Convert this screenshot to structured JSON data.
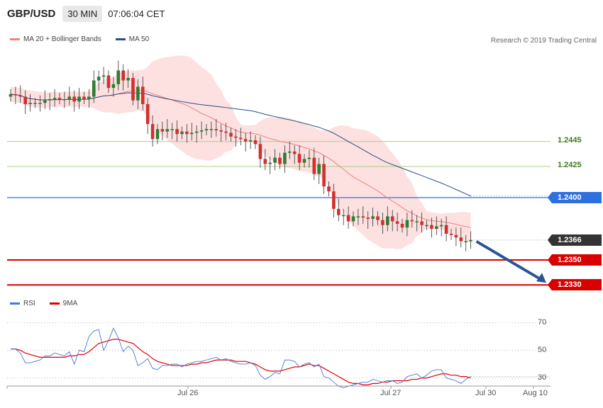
{
  "header": {
    "symbol": "GBP/USD",
    "timeframe": "30 MIN",
    "time": "07:06:04 CET"
  },
  "legend": {
    "ma20_label": "MA 20 + Bollinger Bands",
    "ma50_label": "MA 50",
    "rsi_label": "RSI",
    "rsi_ma_label": "9MA"
  },
  "copyright": "Research © 2019 Trading Central",
  "colors": {
    "bull": "#2e7d32",
    "bear": "#d32f2f",
    "ma20": "#f08080",
    "band_fill": "#fde0e0",
    "ma50": "#2b4f81",
    "green_level": "#a8d088",
    "blue_level": "#2f6fe0",
    "red_level": "#d90000",
    "current_price": "#333333",
    "rsi": "#4a74d8",
    "rsi_ma": "#e00000",
    "arrow": "#2a5596"
  },
  "chart_data": {
    "type": "candlestick",
    "title": "GBP/USD 30 MIN",
    "current_price": 1.2366,
    "levels": [
      {
        "value": 1.2445,
        "label": "1.2445",
        "kind": "resistance-green"
      },
      {
        "value": 1.2425,
        "label": "1.2425",
        "kind": "resistance-green"
      },
      {
        "value": 1.24,
        "label": "1.2400",
        "kind": "pivot-blue"
      },
      {
        "value": 1.2366,
        "label": "1.2366",
        "kind": "current"
      },
      {
        "value": 1.235,
        "label": "1.2350",
        "kind": "support-red"
      },
      {
        "value": 1.233,
        "label": "1.2330",
        "kind": "support-red"
      }
    ],
    "x_ticks": [
      "Jul 26",
      "Jul 27",
      "Jul 30",
      "Aug 10"
    ],
    "closes": [
      1.2483,
      1.2482,
      1.2481,
      1.2475,
      1.2476,
      1.2476,
      1.2476,
      1.2478,
      1.2479,
      1.248,
      1.2479,
      1.2479,
      1.2481,
      1.2477,
      1.2481,
      1.2479,
      1.2481,
      1.2494,
      1.2497,
      1.2498,
      1.2488,
      1.2491,
      1.2502,
      1.2494,
      1.2496,
      1.2478,
      1.2489,
      1.2475,
      1.2459,
      1.2447,
      1.2455,
      1.2453,
      1.2455,
      1.2455,
      1.2451,
      1.2453,
      1.2451,
      1.2452,
      1.2453,
      1.2454,
      1.2455,
      1.2455,
      1.2454,
      1.2453,
      1.2452,
      1.2449,
      1.2448,
      1.2447,
      1.2445,
      1.2446,
      1.2443,
      1.2431,
      1.2427,
      1.2428,
      1.2432,
      1.2427,
      1.2436,
      1.2437,
      1.2435,
      1.2428,
      1.2431,
      1.2432,
      1.2419,
      1.2427,
      1.2409,
      1.2405,
      1.2391,
      1.2386,
      1.2386,
      1.2381,
      1.2385,
      1.2385,
      1.2384,
      1.2383,
      1.2385,
      1.2382,
      1.2378,
      1.2385,
      1.2381,
      1.2379,
      1.2376,
      1.2382,
      1.2381,
      1.2381,
      1.2378,
      1.2378,
      1.2375,
      1.2377,
      1.2378,
      1.2371,
      1.237,
      1.2368,
      1.2365,
      1.2365,
      1.2366
    ],
    "opens": [
      1.2481,
      1.2483,
      1.2482,
      1.2481,
      1.2475,
      1.2476,
      1.2476,
      1.2476,
      1.2478,
      1.2479,
      1.248,
      1.2479,
      1.2479,
      1.2481,
      1.2477,
      1.2481,
      1.2479,
      1.2481,
      1.2494,
      1.2497,
      1.2498,
      1.2488,
      1.2491,
      1.2502,
      1.2494,
      1.2496,
      1.2478,
      1.2489,
      1.2475,
      1.2459,
      1.2447,
      1.2455,
      1.2453,
      1.2455,
      1.2455,
      1.2451,
      1.2453,
      1.2451,
      1.2452,
      1.2453,
      1.2454,
      1.2455,
      1.2455,
      1.2454,
      1.2453,
      1.2452,
      1.2449,
      1.2448,
      1.2447,
      1.2445,
      1.2446,
      1.2443,
      1.2431,
      1.2427,
      1.2428,
      1.2432,
      1.2427,
      1.2436,
      1.2437,
      1.2435,
      1.2428,
      1.2431,
      1.2432,
      1.2419,
      1.2427,
      1.2409,
      1.2405,
      1.2391,
      1.2386,
      1.2386,
      1.2381,
      1.2385,
      1.2385,
      1.2384,
      1.2383,
      1.2385,
      1.2382,
      1.2378,
      1.2385,
      1.2381,
      1.2379,
      1.2376,
      1.2382,
      1.2381,
      1.2381,
      1.2378,
      1.2378,
      1.2375,
      1.2377,
      1.2378,
      1.2371,
      1.237,
      1.2368,
      1.2365,
      1.2365
    ],
    "rsi": {
      "ticks": [
        30,
        50,
        70
      ],
      "ylim": [
        18,
        78
      ],
      "rsi_values": [
        51,
        51,
        48,
        41,
        41,
        42,
        43,
        46,
        46,
        48,
        47,
        46,
        49,
        40,
        50,
        49,
        60,
        64,
        65,
        50,
        57,
        66,
        59,
        49,
        53,
        50,
        39,
        41,
        44,
        37,
        36,
        39,
        39,
        40,
        40,
        38,
        40,
        41,
        42,
        42,
        43,
        44,
        45,
        43,
        44,
        42,
        41,
        40,
        40,
        41,
        39,
        32,
        29,
        31,
        34,
        33,
        43,
        43,
        42,
        38,
        40,
        41,
        38,
        40,
        31,
        30,
        27,
        24,
        23,
        24,
        25,
        26,
        27,
        27,
        29,
        28,
        27,
        28,
        28,
        26,
        27,
        31,
        32,
        33,
        30,
        32,
        35,
        36,
        36,
        30,
        29,
        28,
        26,
        29,
        31
      ],
      "rsi_ma_values": [
        51,
        51,
        50,
        48,
        47,
        46,
        45,
        45,
        45,
        45,
        45,
        45,
        46,
        46,
        47,
        47,
        49,
        52,
        55,
        56,
        57,
        58,
        58,
        57,
        56,
        55,
        52,
        49,
        47,
        44,
        42,
        41,
        40,
        39,
        39,
        39,
        39,
        40,
        40,
        41,
        41,
        42,
        43,
        43,
        43,
        43,
        42,
        42,
        42,
        41,
        40,
        38,
        36,
        35,
        35,
        35,
        36,
        37,
        38,
        38,
        39,
        40,
        39,
        39,
        37,
        35,
        33,
        31,
        29,
        27,
        26,
        26,
        25,
        25,
        26,
        26,
        27,
        27,
        28,
        28,
        28,
        28,
        29,
        29,
        30,
        30,
        31,
        32,
        33,
        33,
        32,
        32,
        31,
        31,
        30
      ]
    }
  }
}
